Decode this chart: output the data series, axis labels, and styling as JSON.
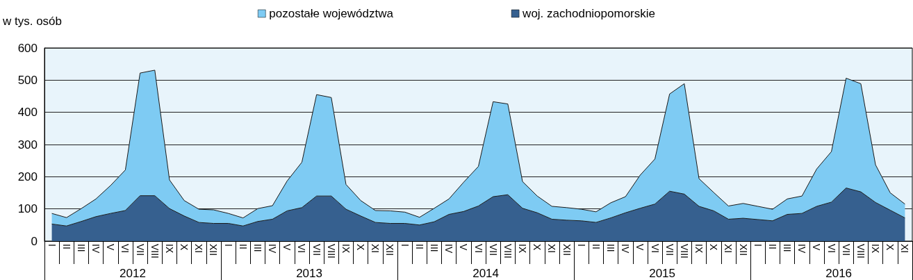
{
  "chart_data": {
    "type": "area",
    "stacked": true,
    "ylabel": "w tys. osób",
    "categories": [
      "I",
      "II",
      "III",
      "IV",
      "V",
      "VI",
      "VII",
      "VIII",
      "IX",
      "X",
      "XI",
      "XII",
      "I",
      "II",
      "III",
      "IV",
      "V",
      "VI",
      "VII",
      "VIII",
      "IX",
      "X",
      "XI",
      "XII",
      "I",
      "II",
      "III",
      "IV",
      "V",
      "VI",
      "VII",
      "VIII",
      "IX",
      "X",
      "XI",
      "XII",
      "I",
      "II",
      "III",
      "IV",
      "V",
      "VI",
      "VII",
      "VIII",
      "IX",
      "X",
      "XI",
      "XII",
      "I",
      "II",
      "III",
      "IV",
      "V",
      "VI",
      "VII",
      "VIII",
      "IX",
      "X",
      "XI"
    ],
    "annotations": [
      "2012",
      "2013",
      "2014",
      "2015",
      "2016"
    ],
    "series": [
      {
        "name": "woj. zachodniopomorskie",
        "color": "#36608f",
        "values": [
          53,
          47,
          61,
          76,
          86,
          95,
          141,
          141,
          101,
          78,
          58,
          55,
          55,
          47,
          61,
          68,
          94,
          104,
          140,
          140,
          99,
          78,
          58,
          55,
          55,
          50,
          60,
          83,
          92,
          109,
          138,
          144,
          102,
          88,
          68,
          65,
          63,
          58,
          72,
          88,
          102,
          115,
          155,
          146,
          108,
          94,
          68,
          71,
          67,
          63,
          83,
          86,
          108,
          121,
          165,
          153,
          120,
          96,
          72
        ]
      },
      {
        "name": "pozostałe województwa",
        "color": "#7ecbf3",
        "values": [
          33,
          26,
          40,
          55,
          87,
          126,
          381,
          390,
          89,
          48,
          41,
          42,
          31,
          25,
          40,
          42,
          93,
          141,
          315,
          306,
          77,
          48,
          37,
          39,
          35,
          24,
          42,
          48,
          91,
          123,
          295,
          282,
          83,
          52,
          40,
          39,
          36,
          33,
          47,
          50,
          103,
          140,
          302,
          343,
          86,
          57,
          41,
          46,
          41,
          36,
          48,
          54,
          116,
          157,
          341,
          336,
          117,
          54,
          43
        ]
      }
    ],
    "ylim": [
      0,
      600
    ],
    "yticks": [
      0,
      100,
      200,
      300,
      400,
      500,
      600
    ],
    "grid": "y",
    "legend": "top"
  }
}
